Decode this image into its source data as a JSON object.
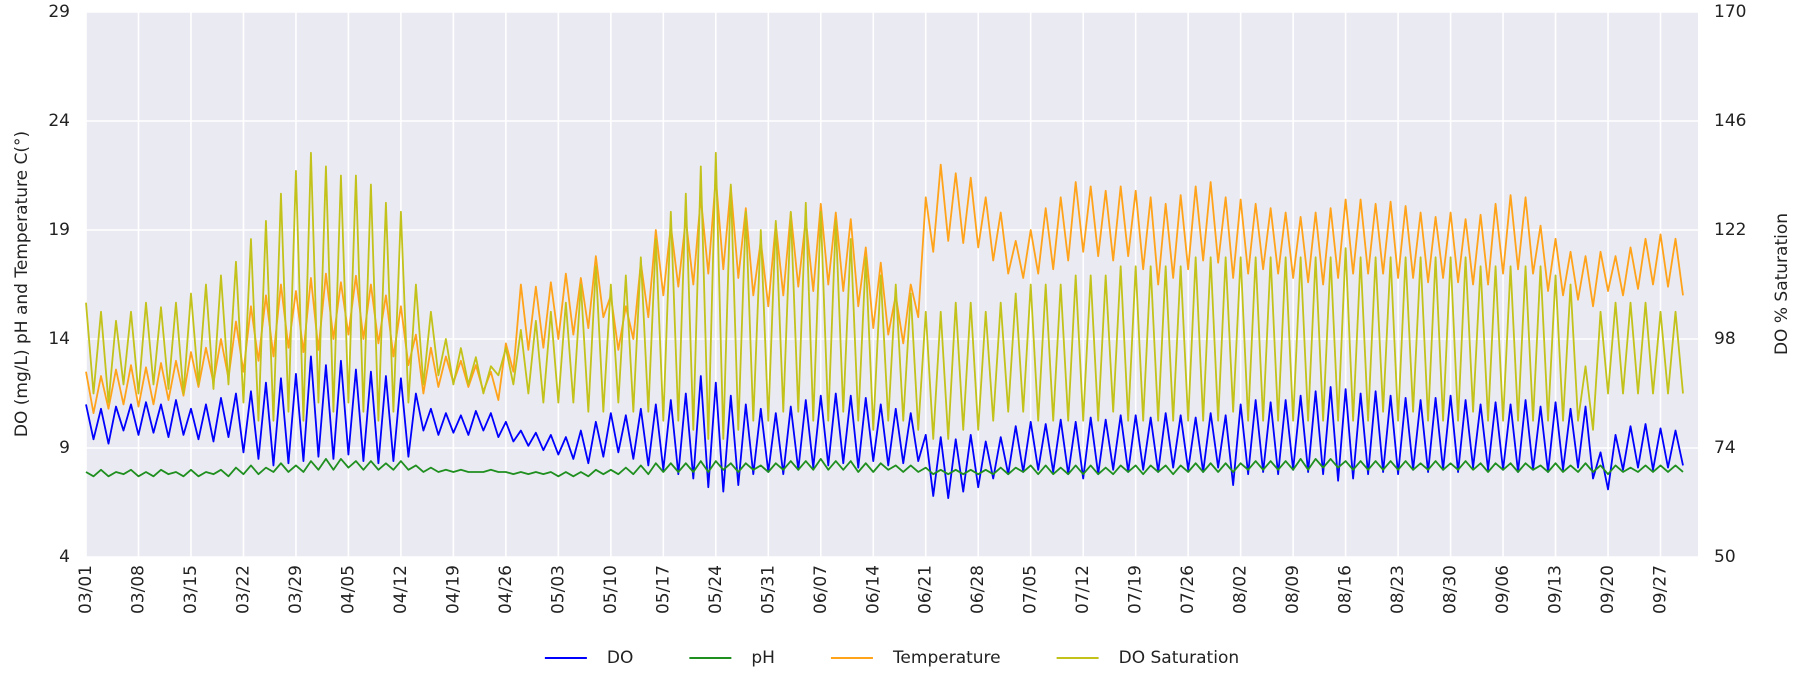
{
  "chart_data": {
    "type": "line",
    "y_label": "DO (mg/L) pH and Temperature C(°)",
    "y2_label": "DO % Saturation",
    "x": [
      0,
      1,
      2,
      3,
      4,
      5,
      6,
      7,
      8,
      9,
      10,
      11,
      12,
      13,
      14,
      15,
      16,
      17,
      18,
      19,
      20,
      21,
      22,
      23,
      24,
      25,
      26,
      27,
      28,
      29,
      30,
      31,
      32,
      33,
      34,
      35,
      36,
      37,
      38,
      39,
      40,
      41,
      42,
      43,
      44,
      45,
      46,
      47,
      48,
      49,
      50,
      51,
      52,
      53,
      54,
      55,
      56,
      57,
      58,
      59,
      60,
      61,
      62,
      63,
      64,
      65,
      66,
      67,
      68,
      69,
      70,
      71,
      72,
      73,
      74,
      75,
      76,
      77,
      78,
      79,
      80,
      81,
      82,
      83,
      84,
      85,
      86,
      87,
      88,
      89,
      90,
      91,
      92,
      93,
      94,
      95,
      96,
      97,
      98,
      99,
      100,
      101,
      102,
      103,
      104,
      105,
      106,
      107,
      108,
      109,
      110,
      111,
      112,
      113,
      114,
      115,
      116,
      117,
      118,
      119,
      120,
      121,
      122,
      123,
      124,
      125,
      126,
      127,
      128,
      129,
      130,
      131,
      132,
      133,
      134,
      135,
      136,
      137,
      138,
      139,
      140,
      141,
      142,
      143,
      144,
      145,
      146,
      147,
      148,
      149,
      150,
      151,
      152,
      153,
      154,
      155,
      156,
      157,
      158,
      159,
      160,
      161,
      162,
      163,
      164,
      165,
      166,
      167,
      168,
      169,
      170,
      171,
      172,
      173,
      174,
      175,
      176,
      177,
      178,
      179,
      180,
      181,
      182,
      183,
      184,
      185,
      186,
      187,
      188,
      189,
      190,
      191,
      192,
      193,
      194,
      195,
      196,
      197,
      198,
      199,
      200,
      201,
      202,
      203,
      204,
      205,
      206,
      207,
      208,
      209,
      210,
      211,
      212,
      213
    ],
    "series": [
      {
        "name": "DO",
        "color": "#0000ff",
        "axis": "y",
        "values": [
          11,
          9.4,
          10.8,
          9.2,
          10.9,
          9.8,
          11,
          9.6,
          11.1,
          9.7,
          11,
          9.5,
          11.2,
          9.6,
          10.8,
          9.4,
          11,
          9.3,
          11.3,
          9.5,
          11.5,
          8.8,
          11.6,
          8.5,
          12,
          8.2,
          12.2,
          8.3,
          12.4,
          8.4,
          13.2,
          8.6,
          12.8,
          8.5,
          13,
          8.7,
          12.6,
          8.4,
          12.5,
          8.3,
          12.3,
          8.4,
          12.2,
          8.6,
          11.5,
          9.8,
          10.8,
          9.6,
          10.6,
          9.7,
          10.5,
          9.6,
          10.7,
          9.8,
          10.6,
          9.5,
          10.2,
          9.3,
          9.8,
          9.1,
          9.7,
          8.9,
          9.6,
          8.7,
          9.5,
          8.5,
          9.8,
          8.3,
          10.2,
          8.6,
          10.6,
          8.8,
          10.5,
          8.5,
          10.8,
          8.2,
          11,
          8,
          11.2,
          7.8,
          11.5,
          7.6,
          12.3,
          7.2,
          12,
          7,
          11.4,
          7.3,
          11,
          7.8,
          10.8,
          7.9,
          10.6,
          7.8,
          10.9,
          8,
          11.2,
          8.1,
          11.4,
          8.2,
          11.5,
          8.3,
          11.4,
          8.1,
          11.3,
          8.4,
          11,
          8.2,
          10.8,
          8.3,
          10.6,
          8.4,
          9.6,
          6.8,
          9.5,
          6.7,
          9.4,
          7,
          9.6,
          7.2,
          9.3,
          7.6,
          9.5,
          7.8,
          10,
          7.9,
          10.2,
          8,
          10.1,
          7.9,
          10.3,
          7.8,
          10.2,
          7.6,
          10.4,
          7.8,
          10.3,
          8,
          10.5,
          7.9,
          10.5,
          8,
          10.4,
          7.9,
          10.6,
          8.1,
          10.5,
          8,
          10.4,
          7.9,
          10.6,
          8.1,
          10.5,
          7.3,
          11,
          7.8,
          11.2,
          7.9,
          11.1,
          7.8,
          11.2,
          8,
          11.4,
          7.9,
          11.6,
          7.8,
          11.8,
          7.5,
          11.7,
          7.6,
          11.5,
          7.8,
          11.6,
          7.9,
          11.4,
          7.8,
          11.3,
          8,
          11.2,
          7.9,
          11.3,
          8,
          11.4,
          7.9,
          11.2,
          8.1,
          11,
          8,
          11.1,
          8,
          11,
          7.9,
          11.2,
          8,
          10.9,
          7.9,
          11.1,
          8,
          10.8,
          8.1,
          10.9,
          7.6,
          8.8,
          7.1,
          9.6,
          8,
          10,
          8.1,
          10.1,
          8,
          9.9,
          8.1,
          9.8,
          8.2
        ]
      },
      {
        "name": "pH",
        "color": "#1f8f1f",
        "axis": "y",
        "values": [
          7.9,
          7.7,
          8,
          7.7,
          7.9,
          7.8,
          8,
          7.7,
          7.9,
          7.7,
          8,
          7.8,
          7.9,
          7.7,
          8,
          7.7,
          7.9,
          7.8,
          8,
          7.7,
          8.1,
          7.8,
          8.2,
          7.8,
          8.1,
          7.9,
          8.3,
          7.9,
          8.2,
          7.9,
          8.4,
          8,
          8.5,
          8,
          8.5,
          8.1,
          8.4,
          8,
          8.4,
          8,
          8.3,
          8,
          8.4,
          8,
          8.2,
          7.9,
          8.1,
          7.9,
          8,
          7.9,
          8,
          7.9,
          7.9,
          7.9,
          8,
          7.9,
          7.9,
          7.8,
          7.9,
          7.8,
          7.9,
          7.8,
          7.9,
          7.7,
          7.9,
          7.7,
          7.9,
          7.7,
          8,
          7.8,
          8,
          7.8,
          8.1,
          7.8,
          8.2,
          7.8,
          8.3,
          7.9,
          8.3,
          7.9,
          8.3,
          7.9,
          8.4,
          7.9,
          8.4,
          8,
          8.3,
          7.9,
          8.3,
          8,
          8.2,
          7.9,
          8.3,
          8,
          8.4,
          8,
          8.4,
          8,
          8.5,
          8,
          8.4,
          8,
          8.4,
          7.9,
          8.3,
          7.9,
          8.3,
          8,
          8.2,
          7.9,
          8.2,
          7.9,
          8.1,
          7.8,
          8,
          7.8,
          8,
          7.8,
          8,
          7.8,
          8,
          7.8,
          8.1,
          7.8,
          8.1,
          7.9,
          8.2,
          7.8,
          8.2,
          7.8,
          8.1,
          7.8,
          8.2,
          7.8,
          8.2,
          7.8,
          8.1,
          7.8,
          8.2,
          7.9,
          8.2,
          7.8,
          8.2,
          7.9,
          8.2,
          7.8,
          8.2,
          7.9,
          8.3,
          7.9,
          8.3,
          7.9,
          8.3,
          7.9,
          8.3,
          8,
          8.4,
          8,
          8.4,
          8,
          8.4,
          8,
          8.5,
          8,
          8.5,
          8.1,
          8.5,
          8.1,
          8.4,
          8,
          8.4,
          8,
          8.4,
          8,
          8.4,
          8,
          8.4,
          8,
          8.3,
          8,
          8.4,
          8,
          8.3,
          8,
          8.4,
          8,
          8.3,
          7.9,
          8.3,
          8,
          8.3,
          7.9,
          8.3,
          8,
          8.2,
          7.9,
          8.3,
          7.9,
          8.2,
          7.9,
          8.3,
          7.9,
          8.2,
          7.8,
          8.2,
          7.9,
          8.1,
          7.9,
          8.2,
          7.9,
          8.2,
          7.9,
          8.2,
          7.9
        ]
      },
      {
        "name": "Temperature",
        "color": "#ffa31a",
        "axis": "y",
        "values": [
          12.5,
          10.6,
          12.3,
          10.8,
          12.6,
          11,
          12.8,
          10.9,
          12.7,
          11,
          12.9,
          11.2,
          13,
          11.4,
          13.4,
          11.8,
          13.6,
          12,
          14,
          12.2,
          14.8,
          12.5,
          15.5,
          13,
          16,
          13.2,
          16.5,
          13.6,
          16.2,
          13.4,
          16.8,
          13.5,
          17,
          14,
          16.6,
          14.2,
          16.9,
          14,
          16.5,
          13.8,
          16,
          13.2,
          15.5,
          12.8,
          14.2,
          11.5,
          13.6,
          11.8,
          13.2,
          12,
          13,
          11.8,
          12.8,
          11.6,
          12.5,
          11.2,
          13.8,
          12.5,
          16.5,
          13.5,
          16.4,
          13.6,
          16.6,
          14,
          17,
          14.2,
          16.8,
          14.5,
          17.8,
          15,
          16,
          13.5,
          15.5,
          14,
          17.5,
          15,
          19,
          16,
          19.2,
          16.4,
          19.5,
          16.5,
          20.5,
          17,
          21.4,
          17.2,
          21,
          16.8,
          20,
          16,
          18.5,
          15.5,
          19.3,
          16,
          19.8,
          16.4,
          19.5,
          16.2,
          20.2,
          16.5,
          19.8,
          16.2,
          19.5,
          15.5,
          18.2,
          14.5,
          17.5,
          14.2,
          16,
          13.8,
          16.5,
          15,
          20.5,
          18,
          22,
          18.5,
          21.6,
          18.4,
          21.4,
          18.2,
          20.5,
          17.6,
          19.8,
          17,
          18.5,
          16.8,
          19,
          17,
          20,
          17.2,
          20.5,
          17.6,
          21.2,
          18,
          21,
          17.8,
          20.8,
          17.6,
          21,
          17.8,
          20.8,
          17.2,
          20.5,
          16.5,
          20.2,
          16.8,
          20.6,
          17.2,
          21,
          17.6,
          21.2,
          17.5,
          20.5,
          16.8,
          20.4,
          17,
          20.2,
          17.2,
          20,
          17,
          19.8,
          16.8,
          19.6,
          16.6,
          19.8,
          16.5,
          20,
          16.8,
          20.4,
          17,
          20.4,
          17,
          20.2,
          17,
          20.3,
          16.8,
          20.1,
          16.8,
          19.8,
          16.6,
          19.6,
          16.8,
          19.8,
          16.6,
          19.5,
          16.5,
          19.7,
          16.5,
          20.2,
          17,
          20.6,
          17.2,
          20.5,
          17,
          19.2,
          16.2,
          18.6,
          16,
          18,
          15.8,
          17.8,
          15.5,
          18,
          16.2,
          17.8,
          16,
          18.2,
          16.3,
          18.6,
          16.5,
          18.8,
          16.4,
          18.6,
          16
        ]
      },
      {
        "name": "DO Saturation",
        "color": "#c2c21a",
        "axis": "y2",
        "values": [
          106,
          86,
          104,
          84,
          102,
          88,
          104,
          86,
          106,
          88,
          105,
          87,
          106,
          86,
          108,
          88,
          110,
          87,
          112,
          88,
          115,
          84,
          120,
          80,
          124,
          80,
          130,
          82,
          135,
          80,
          139,
          84,
          136,
          82,
          134,
          84,
          134,
          82,
          132,
          80,
          128,
          82,
          126,
          84,
          110,
          88,
          104,
          90,
          98,
          88,
          96,
          88,
          94,
          86,
          92,
          90,
          96,
          88,
          100,
          86,
          102,
          84,
          104,
          84,
          106,
          84,
          110,
          82,
          114,
          82,
          110,
          84,
          112,
          82,
          116,
          82,
          120,
          80,
          126,
          80,
          130,
          78,
          136,
          76,
          139,
          76,
          132,
          78,
          126,
          80,
          122,
          80,
          124,
          82,
          126,
          82,
          128,
          80,
          126,
          80,
          124,
          82,
          120,
          80,
          116,
          78,
          112,
          80,
          110,
          80,
          108,
          78,
          104,
          76,
          104,
          76,
          106,
          78,
          106,
          78,
          104,
          80,
          106,
          82,
          108,
          82,
          110,
          80,
          110,
          80,
          110,
          80,
          112,
          80,
          112,
          80,
          112,
          82,
          114,
          80,
          114,
          80,
          114,
          80,
          114,
          80,
          114,
          80,
          116,
          80,
          116,
          80,
          116,
          82,
          116,
          80,
          116,
          80,
          116,
          80,
          116,
          80,
          116,
          80,
          116,
          80,
          116,
          80,
          118,
          80,
          116,
          80,
          116,
          82,
          116,
          80,
          116,
          82,
          116,
          80,
          116,
          80,
          116,
          80,
          116,
          82,
          114,
          80,
          114,
          80,
          114,
          80,
          114,
          80,
          114,
          80,
          112,
          80,
          110,
          80,
          92,
          78,
          104,
          86,
          106,
          86,
          106,
          86,
          106,
          86,
          104,
          86,
          104,
          86
        ]
      }
    ],
    "xlim": [
      0,
      215
    ],
    "xticks": [
      {
        "value": 0,
        "label": "03/01"
      },
      {
        "value": 7,
        "label": "03/08"
      },
      {
        "value": 14,
        "label": "03/15"
      },
      {
        "value": 21,
        "label": "03/22"
      },
      {
        "value": 28,
        "label": "03/29"
      },
      {
        "value": 35,
        "label": "04/05"
      },
      {
        "value": 42,
        "label": "04/12"
      },
      {
        "value": 49,
        "label": "04/19"
      },
      {
        "value": 56,
        "label": "04/26"
      },
      {
        "value": 63,
        "label": "05/03"
      },
      {
        "value": 70,
        "label": "05/10"
      },
      {
        "value": 77,
        "label": "05/17"
      },
      {
        "value": 84,
        "label": "05/24"
      },
      {
        "value": 91,
        "label": "05/31"
      },
      {
        "value": 98,
        "label": "06/07"
      },
      {
        "value": 105,
        "label": "06/14"
      },
      {
        "value": 112,
        "label": "06/21"
      },
      {
        "value": 119,
        "label": "06/28"
      },
      {
        "value": 126,
        "label": "07/05"
      },
      {
        "value": 133,
        "label": "07/12"
      },
      {
        "value": 140,
        "label": "07/19"
      },
      {
        "value": 147,
        "label": "07/26"
      },
      {
        "value": 154,
        "label": "08/02"
      },
      {
        "value": 161,
        "label": "08/09"
      },
      {
        "value": 168,
        "label": "08/16"
      },
      {
        "value": 175,
        "label": "08/23"
      },
      {
        "value": 182,
        "label": "08/30"
      },
      {
        "value": 189,
        "label": "09/06"
      },
      {
        "value": 196,
        "label": "09/13"
      },
      {
        "value": 203,
        "label": "09/20"
      },
      {
        "value": 210,
        "label": "09/27"
      }
    ],
    "ylim": [
      4,
      29
    ],
    "yticks": [
      4,
      9,
      14,
      19,
      24,
      29
    ],
    "y2lim": [
      50,
      170
    ],
    "y2ticks": [
      50,
      74,
      98,
      122,
      146,
      170
    ],
    "grid": true,
    "legend": "bottom"
  }
}
